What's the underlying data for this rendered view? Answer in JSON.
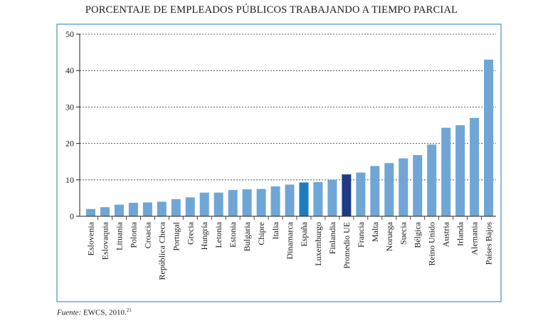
{
  "chart_data": {
    "type": "bar",
    "title": "PORCENTAJE DE EMPLEADOS PÚBLICOS TRABAJANDO A TIEMPO PARCIAL",
    "xlabel": "",
    "ylabel": "",
    "ylim": [
      0,
      50
    ],
    "yticks": [
      0,
      10,
      20,
      30,
      40,
      50
    ],
    "grid": "horizontal dashed",
    "categories": [
      "Eslovenia",
      "Eslovaquia",
      "Lituania",
      "Polonia",
      "Croacia",
      "República Checa",
      "Portugal",
      "Grecia",
      "Hungría",
      "Letonia",
      "Estonia",
      "Bulgaria",
      "Chipre",
      "Italia",
      "Dinamarca",
      "España",
      "Luxemburgo",
      "Finlandia",
      "Promedio UE",
      "Francia",
      "Malta",
      "Noruega",
      "Suecia",
      "Bélgica",
      "Reino Unido",
      "Austria",
      "Irlanda",
      "Alemania",
      "Países Bajos"
    ],
    "values": [
      2.0,
      2.5,
      3.2,
      3.7,
      3.8,
      4.0,
      4.7,
      5.2,
      6.5,
      6.5,
      7.2,
      7.4,
      7.5,
      8.2,
      8.7,
      9.3,
      9.4,
      10.0,
      11.5,
      12.0,
      13.8,
      14.6,
      15.9,
      16.8,
      19.7,
      24.3,
      25.0,
      27.0,
      43.0
    ],
    "colors": {
      "default": "#6fa6d6",
      "España": "#1b7ec2",
      "Promedio UE": "#1d3b86",
      "frame": "#4a8fcd",
      "axis": "#222222"
    }
  },
  "source": {
    "label": "Fuente:",
    "text": " EWCS, 2010.",
    "note_ref": "21"
  }
}
